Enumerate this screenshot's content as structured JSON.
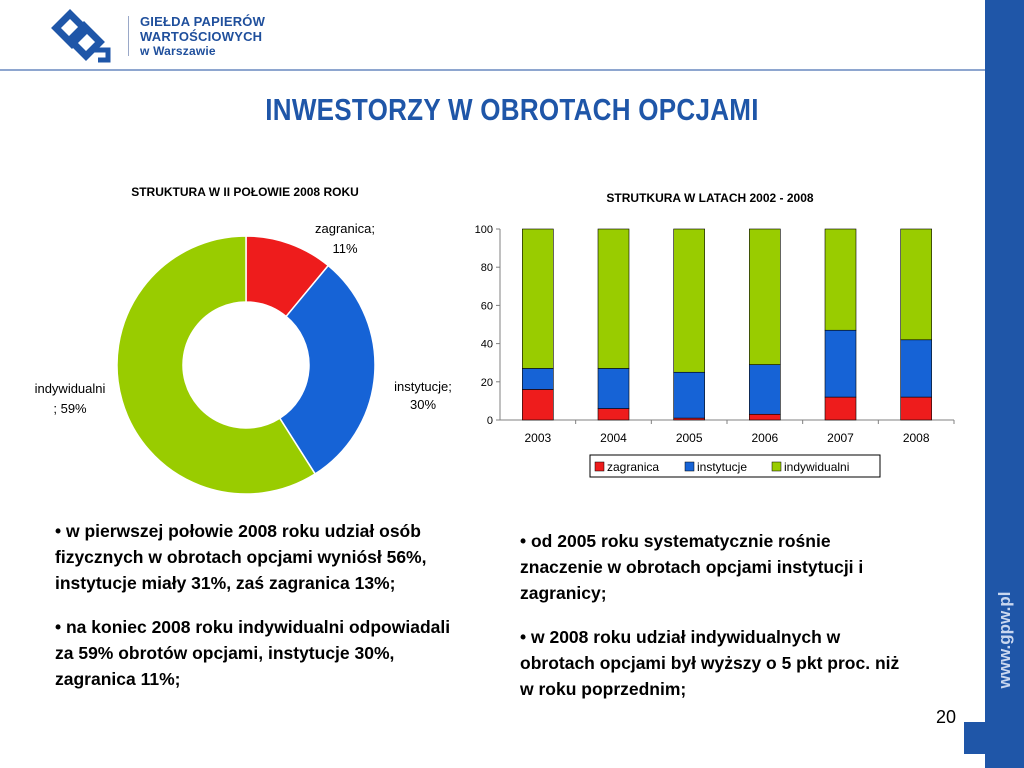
{
  "header": {
    "logo_line1": "GIEŁDA PAPIERÓW",
    "logo_line2": "WARTOŚCIOWYCH",
    "logo_line3": "w Warszawie"
  },
  "slide": {
    "title": "INWESTORZY W OBROTACH OPCJAMI",
    "side_url": "www.gpw.pl",
    "page_number": "20",
    "colors": {
      "brand_blue": "#1f56a8",
      "zagranica": "#ee1c1c",
      "instytucje": "#1663d6",
      "indywidualni": "#99cc00"
    }
  },
  "chart_data": [
    {
      "type": "pie",
      "title": "STRUKTURA W II POŁOWIE 2008 ROKU",
      "slices": [
        {
          "name": "zagranica",
          "value": 11,
          "label_line1": "zagranica;",
          "label_line2": "11%"
        },
        {
          "name": "instytucje",
          "value": 30,
          "label_line1": "instytucje;",
          "label_line2": "30%"
        },
        {
          "name": "indywidualni",
          "value": 59,
          "label_line1": "indywidualni",
          "label_line2": "; 59%"
        }
      ],
      "donut": true
    },
    {
      "type": "bar",
      "stacked": true,
      "title": "STRUTKURA W LATACH 2002 - 2008",
      "categories": [
        "2003",
        "2004",
        "2005",
        "2006",
        "2007",
        "2008"
      ],
      "series": [
        {
          "name": "zagranica",
          "values": [
            16,
            6,
            1,
            3,
            12,
            12
          ]
        },
        {
          "name": "instytucje",
          "values": [
            11,
            21,
            24,
            26,
            35,
            30
          ]
        },
        {
          "name": "indywidualni",
          "values": [
            73,
            73,
            75,
            71,
            53,
            58
          ]
        }
      ],
      "ylim": [
        0,
        100
      ],
      "yticks": [
        "0",
        "20",
        "40",
        "60",
        "80",
        "100"
      ],
      "legend_position": "bottom"
    }
  ],
  "bullets_left": [
    "• w pierwszej połowie 2008 roku udział osób fizycznych w obrotach opcjami wyniósł 56%, instytucje miały 31%, zaś zagranica 13%;",
    "• na koniec 2008 roku indywidualni odpowiadali za 59% obrotów opcjami, instytucje 30%, zagranica 11%;"
  ],
  "bullets_right": [
    "• od 2005 roku systematycznie rośnie znaczenie w obrotach opcjami instytucji i zagranicy;",
    "• w 2008 roku udział indywidualnych w obrotach opcjami był wyższy o 5 pkt proc. niż w roku poprzednim;"
  ]
}
